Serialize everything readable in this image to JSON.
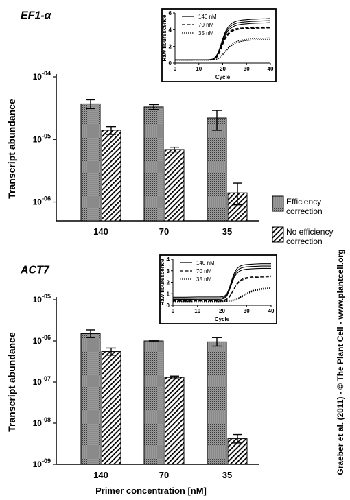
{
  "credit": "Graeber et al. (2011) - © The Plant Cell - www.plantcell.org",
  "xlabel": "Primer concentration [nM]",
  "legend": [
    {
      "label": [
        "Efficiency",
        "correction"
      ],
      "pattern": "dots"
    },
    {
      "label": [
        "No efficiency",
        "correction"
      ],
      "pattern": "hatch"
    }
  ],
  "chart_data": [
    {
      "type": "bar",
      "title": "EF1-α",
      "ylabel": "Transcript abundance",
      "yscale": "log",
      "ylim": [
        5e-07,
        0.0001
      ],
      "y_ticks": [
        {
          "exp": -4,
          "value": 0.0001
        },
        {
          "exp": -5,
          "value": 1e-05
        },
        {
          "exp": -6,
          "value": 1e-06
        }
      ],
      "categories": [
        "140",
        "70",
        "35"
      ],
      "series": [
        {
          "name": "Efficiency correction",
          "values": [
            3.7e-05,
            3.3e-05,
            2.2e-05
          ],
          "err_low": [
            3.1e-05,
            3e-05,
            1.4e-05
          ],
          "err_high": [
            4.3e-05,
            3.6e-05,
            2.9e-05
          ]
        },
        {
          "name": "No efficiency correction",
          "values": [
            1.4e-05,
            6.9e-06,
            1.4e-06
          ],
          "err_low": [
            1.2e-05,
            6.3e-06,
            9e-07
          ],
          "err_high": [
            1.6e-05,
            7.5e-06,
            2e-06
          ]
        }
      ],
      "inset": {
        "type": "line",
        "xlabel": "Cycle",
        "ylabel": "Raw flourescence",
        "xlim": [
          0,
          40
        ],
        "ylim": [
          0,
          6
        ],
        "x_ticks": [
          0,
          10,
          20,
          30,
          40
        ],
        "y_ticks": [
          0,
          2,
          4,
          6
        ],
        "x": [
          0,
          5,
          10,
          14,
          15,
          16,
          17,
          18,
          19,
          20,
          21,
          22,
          23,
          24,
          25,
          26,
          27,
          28,
          30,
          32,
          34,
          36,
          38,
          40
        ],
        "series": [
          {
            "name": "140 nM",
            "style": "solid",
            "lines": [
              [
                0.4,
                0.4,
                0.4,
                0.4,
                0.45,
                0.5,
                0.75,
                1.2,
                2.0,
                2.9,
                3.7,
                4.2,
                4.55,
                4.8,
                4.95,
                5.05,
                5.1,
                5.15,
                5.2,
                5.25,
                5.28,
                5.3,
                5.32,
                5.35
              ],
              [
                0.38,
                0.38,
                0.38,
                0.38,
                0.42,
                0.48,
                0.7,
                1.1,
                1.9,
                2.75,
                3.5,
                4.0,
                4.35,
                4.55,
                4.7,
                4.8,
                4.85,
                4.9,
                4.95,
                5.0,
                5.02,
                5.05,
                5.07,
                5.1
              ],
              [
                0.36,
                0.36,
                0.36,
                0.36,
                0.4,
                0.45,
                0.65,
                1.05,
                1.8,
                2.6,
                3.3,
                3.8,
                4.1,
                4.3,
                4.45,
                4.55,
                4.6,
                4.65,
                4.7,
                4.75,
                4.78,
                4.8,
                4.82,
                4.85
              ]
            ]
          },
          {
            "name": "70 nM",
            "style": "dashed",
            "lines": [
              [
                0.38,
                0.38,
                0.38,
                0.38,
                0.4,
                0.45,
                0.6,
                0.95,
                1.6,
                2.4,
                3.05,
                3.5,
                3.8,
                3.98,
                4.08,
                4.14,
                4.18,
                4.2,
                4.24,
                4.26,
                4.28,
                4.3,
                4.3,
                4.32
              ],
              [
                0.37,
                0.37,
                0.37,
                0.37,
                0.39,
                0.44,
                0.58,
                0.9,
                1.5,
                2.3,
                2.95,
                3.4,
                3.72,
                3.9,
                4.02,
                4.08,
                4.12,
                4.15,
                4.18,
                4.2,
                4.22,
                4.24,
                4.25,
                4.26
              ],
              [
                0.36,
                0.36,
                0.36,
                0.36,
                0.38,
                0.42,
                0.55,
                0.85,
                1.45,
                2.2,
                2.85,
                3.3,
                3.62,
                3.82,
                3.94,
                4.0,
                4.05,
                4.08,
                4.12,
                4.14,
                4.16,
                4.18,
                4.19,
                4.2
              ]
            ]
          },
          {
            "name": "35 nM",
            "style": "dotted",
            "lines": [
              [
                0.36,
                0.36,
                0.36,
                0.36,
                0.37,
                0.39,
                0.45,
                0.55,
                0.75,
                1.05,
                1.4,
                1.75,
                2.05,
                2.3,
                2.48,
                2.6,
                2.7,
                2.77,
                2.85,
                2.9,
                2.94,
                2.97,
                3.0,
                3.02
              ],
              [
                0.35,
                0.35,
                0.35,
                0.35,
                0.36,
                0.38,
                0.43,
                0.52,
                0.7,
                0.98,
                1.3,
                1.63,
                1.92,
                2.16,
                2.33,
                2.46,
                2.55,
                2.62,
                2.7,
                2.75,
                2.79,
                2.82,
                2.84,
                2.86
              ]
            ]
          }
        ]
      }
    },
    {
      "type": "bar",
      "title": "ACT7",
      "ylabel": "Transcript abundance",
      "yscale": "log",
      "ylim": [
        1e-09,
        1e-05
      ],
      "y_ticks": [
        {
          "exp": -5,
          "value": 1e-05
        },
        {
          "exp": -6,
          "value": 1e-06
        },
        {
          "exp": -7,
          "value": 1e-07
        },
        {
          "exp": -8,
          "value": 1e-08
        },
        {
          "exp": -9,
          "value": 1e-09
        }
      ],
      "categories": [
        "140",
        "70",
        "35"
      ],
      "series": [
        {
          "name": "Efficiency correction",
          "values": [
            1.5e-06,
            1e-06,
            9.5e-07
          ],
          "err_low": [
            1.2e-06,
            9.5e-07,
            7.5e-07
          ],
          "err_high": [
            1.85e-06,
            1.05e-06,
            1.2e-06
          ]
        },
        {
          "name": "No efficiency correction",
          "values": [
            5.5e-07,
            1.3e-07,
            4.2e-09
          ],
          "err_low": [
            4.5e-07,
            1.2e-07,
            3.3e-09
          ],
          "err_high": [
            6.7e-07,
            1.4e-07,
            5.3e-09
          ]
        }
      ],
      "inset": {
        "type": "line",
        "xlabel": "Cycle",
        "ylabel": "Raw flourescence",
        "xlim": [
          0,
          40
        ],
        "ylim": [
          0,
          4
        ],
        "x_ticks": [
          0,
          10,
          20,
          30,
          40
        ],
        "y_ticks": [
          0,
          1,
          2,
          3,
          4
        ],
        "x": [
          0,
          5,
          10,
          15,
          18,
          19,
          20,
          21,
          22,
          23,
          24,
          25,
          26,
          27,
          28,
          29,
          30,
          32,
          34,
          36,
          38,
          40
        ],
        "series": [
          {
            "name": "140 nM",
            "style": "solid",
            "lines": [
              [
                0.7,
                0.7,
                0.72,
                0.72,
                0.72,
                0.72,
                0.74,
                0.8,
                1.0,
                1.5,
                2.2,
                2.8,
                3.15,
                3.35,
                3.45,
                3.5,
                3.53,
                3.56,
                3.58,
                3.6,
                3.6,
                3.6
              ],
              [
                0.6,
                0.6,
                0.62,
                0.62,
                0.62,
                0.62,
                0.64,
                0.7,
                0.9,
                1.4,
                2.05,
                2.6,
                2.95,
                3.15,
                3.25,
                3.3,
                3.33,
                3.36,
                3.38,
                3.4,
                3.4,
                3.4
              ],
              [
                0.5,
                0.5,
                0.52,
                0.52,
                0.52,
                0.52,
                0.54,
                0.6,
                0.8,
                1.3,
                1.9,
                2.45,
                2.75,
                2.95,
                3.05,
                3.1,
                3.13,
                3.16,
                3.18,
                3.2,
                3.2,
                3.2
              ]
            ]
          },
          {
            "name": "70 nM",
            "style": "dashed",
            "lines": [
              [
                0.4,
                0.4,
                0.42,
                0.42,
                0.42,
                0.42,
                0.43,
                0.46,
                0.55,
                0.75,
                1.1,
                1.5,
                1.85,
                2.1,
                2.25,
                2.35,
                2.4,
                2.46,
                2.5,
                2.52,
                2.54,
                2.55
              ],
              [
                0.35,
                0.35,
                0.37,
                0.37,
                0.37,
                0.37,
                0.38,
                0.41,
                0.5,
                0.7,
                1.05,
                1.45,
                1.78,
                2.02,
                2.17,
                2.27,
                2.32,
                2.38,
                2.42,
                2.44,
                2.46,
                2.47
              ]
            ]
          },
          {
            "name": "35 nM",
            "style": "dotted",
            "lines": [
              [
                0.35,
                0.35,
                0.35,
                0.35,
                0.35,
                0.35,
                0.36,
                0.37,
                0.38,
                0.4,
                0.44,
                0.5,
                0.58,
                0.68,
                0.8,
                0.93,
                1.05,
                1.25,
                1.38,
                1.46,
                1.5,
                1.53
              ],
              [
                0.3,
                0.3,
                0.3,
                0.3,
                0.3,
                0.3,
                0.31,
                0.32,
                0.33,
                0.35,
                0.39,
                0.45,
                0.53,
                0.63,
                0.75,
                0.88,
                1.0,
                1.2,
                1.33,
                1.41,
                1.45,
                1.48
              ],
              [
                0.25,
                0.25,
                0.25,
                0.25,
                0.25,
                0.25,
                0.26,
                0.27,
                0.28,
                0.3,
                0.34,
                0.4,
                0.48,
                0.58,
                0.7,
                0.83,
                0.95,
                1.15,
                1.28,
                1.36,
                1.4,
                1.43
              ]
            ]
          }
        ]
      }
    }
  ]
}
